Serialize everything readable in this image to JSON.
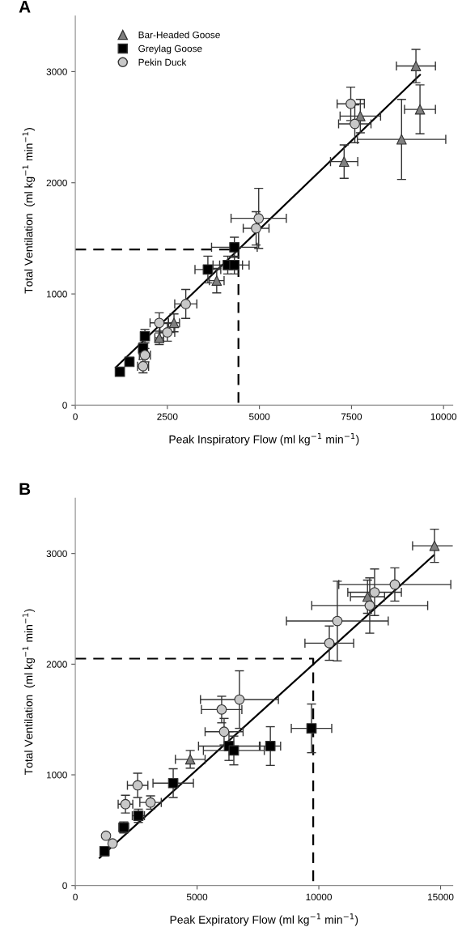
{
  "chart_data": [
    {
      "type": "scatter",
      "title": "A",
      "xlabel": "Peak Inspiratory Flow (ml kg$^{−1}$ min$^{−1}$)",
      "ylabel": "Total Ventilation  (ml kg$^{−1}$ min$^{−1}$)",
      "xlim": [
        0,
        10250
      ],
      "ylim": [
        0,
        3500
      ],
      "xticks": [
        0,
        2500,
        5000,
        7500,
        10000
      ],
      "yticks": [
        0,
        1000,
        2000,
        3000
      ],
      "grid": false,
      "legend": "top left",
      "series": [
        {
          "name": "Bar-Headed Goose",
          "type": "scatter",
          "marker": "triangle",
          "color": "#808080",
          "x": [
            9250,
            9360,
            8860,
            7300,
            7740,
            3840,
            2680,
            2280
          ],
          "values": [
            3050,
            2660,
            2390,
            2190,
            2600,
            1120,
            740,
            605
          ],
          "xerrors": [
            530,
            420,
            1200,
            370,
            550,
            200,
            150,
            120
          ],
          "errors": [
            150,
            220,
            360,
            150,
            150,
            110,
            80,
            60
          ]
        },
        {
          "name": "Greylag Goose",
          "type": "scatter",
          "marker": "square",
          "color": "#000000",
          "x": [
            4320,
            4140,
            4320,
            3600,
            1890,
            1840,
            1470,
            1210
          ],
          "values": [
            1420,
            1260,
            1260,
            1220,
            620,
            510,
            390,
            300
          ],
          "xerrors": [
            620,
            400,
            400,
            350,
            100,
            100,
            100,
            80
          ],
          "errors": [
            90,
            80,
            80,
            120,
            60,
            50,
            40,
            30
          ]
        },
        {
          "name": "Pekin Duck",
          "type": "scatter",
          "marker": "circle",
          "color": "#c8c8c8",
          "x": [
            7480,
            7590,
            4980,
            4910,
            3000,
            2280,
            2500,
            1890,
            1840
          ],
          "values": [
            2710,
            2530,
            1680,
            1590,
            910,
            740,
            655,
            450,
            350
          ],
          "xerrors": [
            370,
            440,
            750,
            350,
            300,
            250,
            200,
            150,
            150
          ],
          "errors": [
            150,
            170,
            270,
            150,
            130,
            90,
            80,
            60,
            60
          ]
        },
        {
          "type": "line",
          "line_style": "solid",
          "marker": "none",
          "color": "#000000",
          "x": [
            1100,
            9360
          ],
          "values": [
            340,
            2970
          ]
        },
        {
          "type": "line",
          "line_style": "dashed",
          "marker": "none",
          "color": "#000000",
          "x": [
            0,
            4430,
            4430
          ],
          "values": [
            1400,
            1400,
            0
          ]
        }
      ]
    },
    {
      "type": "scatter",
      "title": "B",
      "xlabel": "Peak Expiratory Flow (ml kg$^{−1}$ min$^{−1}$)",
      "ylabel": "Total Ventilation  (ml kg$^{−1}$ min$^{−1}$)",
      "xlim": [
        0,
        15500
      ],
      "ylim": [
        0,
        3500
      ],
      "xticks": [
        0,
        5000,
        10000,
        15000
      ],
      "yticks": [
        0,
        1000,
        2000,
        3000
      ],
      "grid": false,
      "series": [
        {
          "type": "scatter",
          "marker": "triangle",
          "color": "#808080",
          "x": [
            14750,
            12000,
            4720
          ],
          "values": [
            3070,
            2610,
            1140
          ],
          "xerrors": [
            900,
            700,
            610
          ],
          "errors": [
            150,
            150,
            80
          ]
        },
        {
          "type": "scatter",
          "marker": "square",
          "color": "#000000",
          "x": [
            8010,
            6310,
            6510,
            9700,
            4020,
            2590,
            1990,
            1200
          ],
          "values": [
            1260,
            1260,
            1220,
            1420,
            925,
            630,
            525,
            310
          ],
          "xerrors": [
            420,
            1250,
            1250,
            830,
            830,
            250,
            200,
            120
          ],
          "errors": [
            175,
            130,
            130,
            220,
            130,
            60,
            50,
            40
          ]
        },
        {
          "type": "scatter",
          "marker": "circle",
          "color": "#c8c8c8",
          "x": [
            13120,
            12290,
            12090,
            10760,
            10430,
            6740,
            6010,
            6110,
            2560,
            3090,
            2060,
            1530,
            1260
          ],
          "values": [
            2720,
            2650,
            2530,
            2390,
            2190,
            1680,
            1590,
            1390,
            905,
            750,
            735,
            380,
            450
          ],
          "xerrors": [
            2300,
            1100,
            2380,
            2090,
            1000,
            1600,
            830,
            780,
            420,
            440,
            300,
            null,
            null
          ],
          "errors": [
            150,
            210,
            250,
            360,
            155,
            260,
            120,
            120,
            110,
            60,
            80,
            null,
            null
          ]
        },
        {
          "type": "line",
          "line_style": "solid",
          "marker": "none",
          "color": "#000000",
          "x": [
            1000,
            14720
          ],
          "values": [
            250,
            2985
          ]
        },
        {
          "type": "line",
          "line_style": "dashed",
          "marker": "none",
          "color": "#000000",
          "x": [
            0,
            9770,
            9770
          ],
          "values": [
            2050,
            2050,
            0
          ]
        }
      ]
    }
  ]
}
